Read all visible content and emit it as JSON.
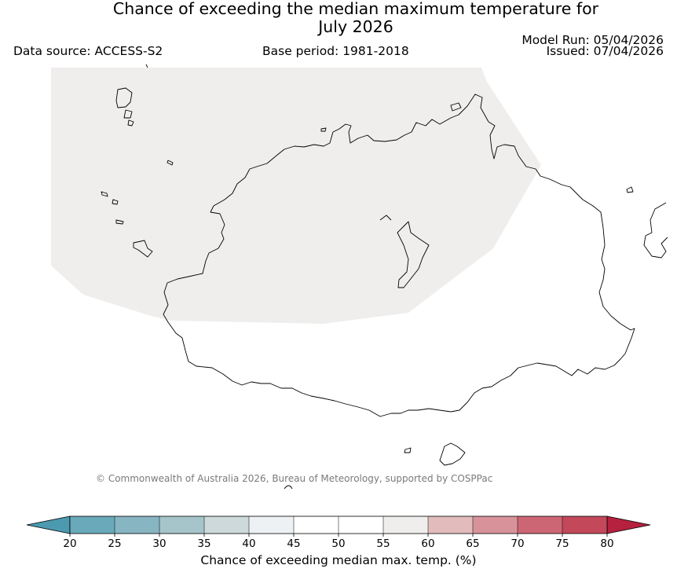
{
  "title": {
    "line1": "Chance of exceeding the median maximum temperature for",
    "line2": "July 2026"
  },
  "data_source": "Data source: ACCESS-S2",
  "base_period": "Base period: 1981-2018",
  "model_run": "Model Run: 05/04/2026",
  "issued": "Issued: 07/04/2026",
  "copyright": "© Commonwealth of Australia 2026, Bureau of Meteorology, supported by COSPPac",
  "colorbar": {
    "label": "Chance of exceeding median max. temp. (%)",
    "ticks": [
      "20",
      "25",
      "30",
      "35",
      "40",
      "45",
      "50",
      "55",
      "60",
      "65",
      "70",
      "75",
      "80"
    ],
    "below_color": "#4c9ab0",
    "above_color": "#b5213f",
    "bins": [
      {
        "from": 20,
        "to": 25,
        "color": "#69a9ba"
      },
      {
        "from": 25,
        "to": 30,
        "color": "#87b5c2"
      },
      {
        "from": 30,
        "to": 35,
        "color": "#a5c5ca"
      },
      {
        "from": 35,
        "to": 40,
        "color": "#cdd9db"
      },
      {
        "from": 40,
        "to": 45,
        "color": "#edf1f3"
      },
      {
        "from": 45,
        "to": 50,
        "color": "#ffffff"
      },
      {
        "from": 50,
        "to": 55,
        "color": "#ffffff"
      },
      {
        "from": 55,
        "to": 60,
        "color": "#efeeed"
      },
      {
        "from": 60,
        "to": 65,
        "color": "#e2bcbc"
      },
      {
        "from": 65,
        "to": 70,
        "color": "#d8939a"
      },
      {
        "from": 70,
        "to": 75,
        "color": "#cd6674"
      },
      {
        "from": 75,
        "to": 80,
        "color": "#c2485a"
      }
    ]
  },
  "map": {
    "region_shading": {
      "category": "55-60",
      "color": "#efeeed"
    },
    "coastline_color": "#000000"
  }
}
